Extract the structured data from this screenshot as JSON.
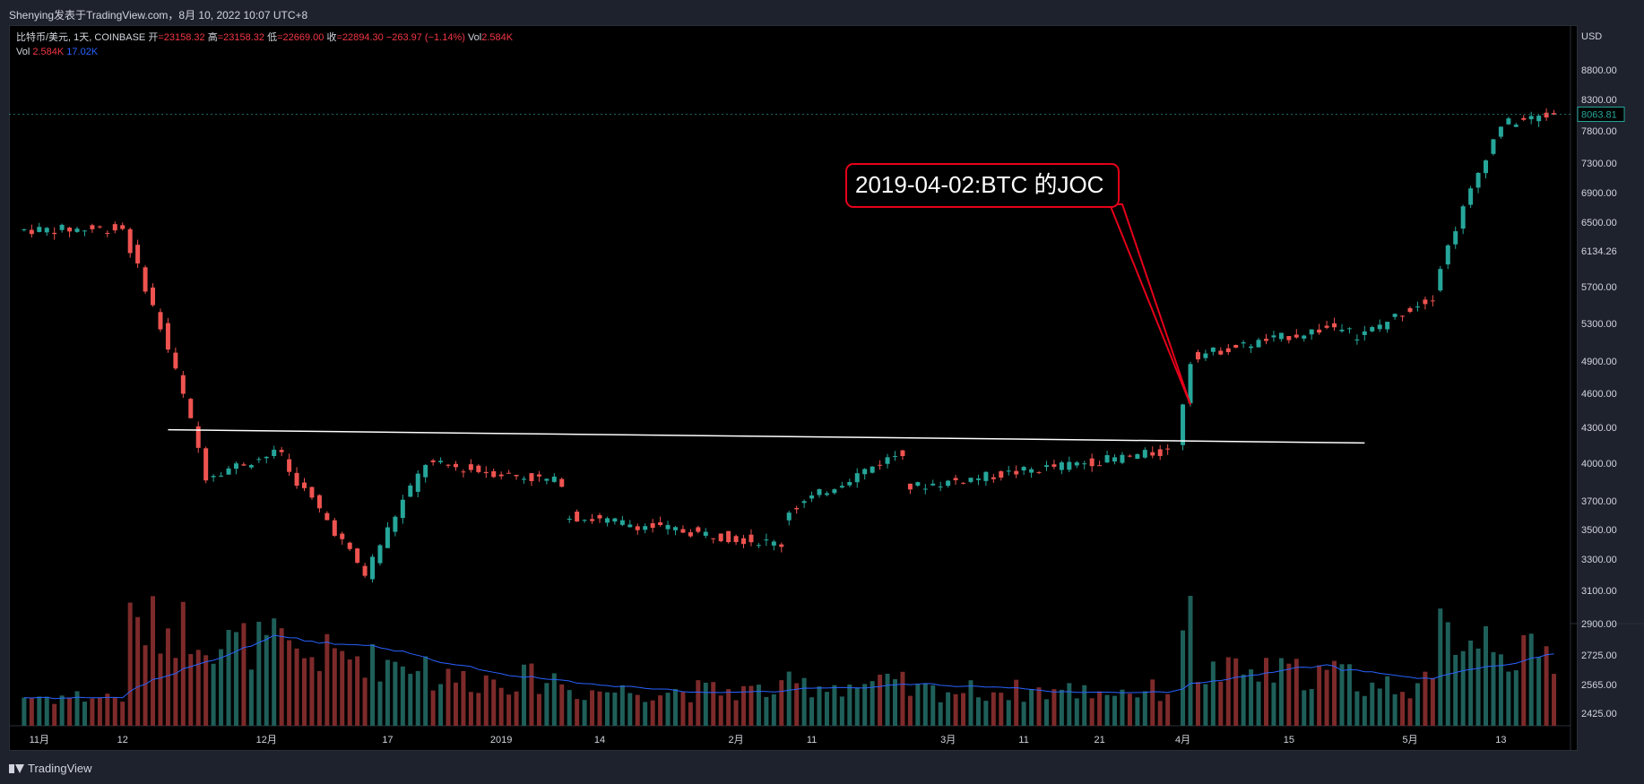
{
  "header": {
    "title": "Shenying发表于TradingView.com，8月 10, 2022 10:07 UTC+8"
  },
  "legend": {
    "symbol": "比特币/美元, 1天, COINBASE",
    "open_label": "开",
    "open": "=23158.32",
    "high_label": "高",
    "high": "=23158.32",
    "low_label": "低",
    "low": "=22669.00",
    "close_label": "收",
    "close": "=22894.30",
    "change": "−263.97 (−1.14%)",
    "vol_label": "Vol",
    "vol": "2.584K",
    "vol2_label": "Vol",
    "vol2_a": "2.584K",
    "vol2_b": "17.02K"
  },
  "footer": {
    "brand": "TradingView"
  },
  "colors": {
    "up": "#26a69a",
    "down": "#ef5350",
    "vol_up": "#1f5f5a",
    "vol_down": "#7d2a2a",
    "ma": "#2962ff",
    "annotation": "#e5001a"
  },
  "chart_data": {
    "type": "candlestick",
    "currency": "USD",
    "current_price": "8063.81",
    "y_ticks": [
      "8800.00",
      "8300.00",
      "7800.00",
      "7300.00",
      "6900.00",
      "6500.00",
      "6134.26",
      "5700.00",
      "5300.00",
      "4900.00",
      "4600.00",
      "4300.00",
      "4000.00",
      "3700.00",
      "3500.00",
      "3300.00",
      "3100.00",
      "2900.00",
      "2725.00",
      "2565.00",
      "2425.00"
    ],
    "x_ticks": [
      "11月",
      "12",
      "12月",
      "17",
      "2019",
      "14",
      "2月",
      "11",
      "3月",
      "11",
      "21",
      "4月",
      "15",
      "5月",
      "13"
    ],
    "annotation": {
      "text": "2019-04-02:BTC 的JOC",
      "date": "2019-04-02"
    },
    "trendline": {
      "from_date": "2018-11-18",
      "from_price": 4280,
      "to_date": "2019-04-25",
      "to_price": 4170
    },
    "ohlc_segments": [
      {
        "from": "2018-10-30",
        "to": "2018-11-13",
        "start": 6400,
        "end": 6420,
        "vol": 0.25
      },
      {
        "from": "2018-11-13",
        "to": "2018-11-24",
        "start": 6380,
        "end": 3900,
        "vol": 0.85
      },
      {
        "from": "2018-11-24",
        "to": "2018-12-04",
        "start": 3900,
        "end": 4100,
        "vol": 0.7
      },
      {
        "from": "2018-12-04",
        "to": "2018-12-15",
        "start": 4000,
        "end": 3200,
        "vol": 0.6
      },
      {
        "from": "2018-12-15",
        "to": "2018-12-23",
        "start": 3200,
        "end": 4000,
        "vol": 0.55
      },
      {
        "from": "2018-12-23",
        "to": "2019-01-10",
        "start": 4000,
        "end": 3850,
        "vol": 0.4
      },
      {
        "from": "2019-01-10",
        "to": "2019-02-08",
        "start": 3600,
        "end": 3400,
        "vol": 0.3
      },
      {
        "from": "2019-02-08",
        "to": "2019-02-24",
        "start": 3600,
        "end": 4100,
        "vol": 0.35
      },
      {
        "from": "2019-02-24",
        "to": "2019-03-31",
        "start": 3800,
        "end": 4100,
        "vol": 0.3
      },
      {
        "from": "2019-04-01",
        "to": "2019-04-03",
        "start": 4150,
        "end": 4900,
        "vol": 1.0
      },
      {
        "from": "2019-04-03",
        "to": "2019-04-24",
        "start": 4950,
        "end": 5300,
        "vol": 0.45
      },
      {
        "from": "2019-04-24",
        "to": "2019-05-05",
        "start": 5100,
        "end": 5600,
        "vol": 0.35
      },
      {
        "from": "2019-05-05",
        "to": "2019-05-14",
        "start": 5700,
        "end": 7900,
        "vol": 0.8
      },
      {
        "from": "2019-05-14",
        "to": "2019-05-21",
        "start": 7900,
        "end": 8063.81,
        "vol": 0.6
      }
    ]
  }
}
